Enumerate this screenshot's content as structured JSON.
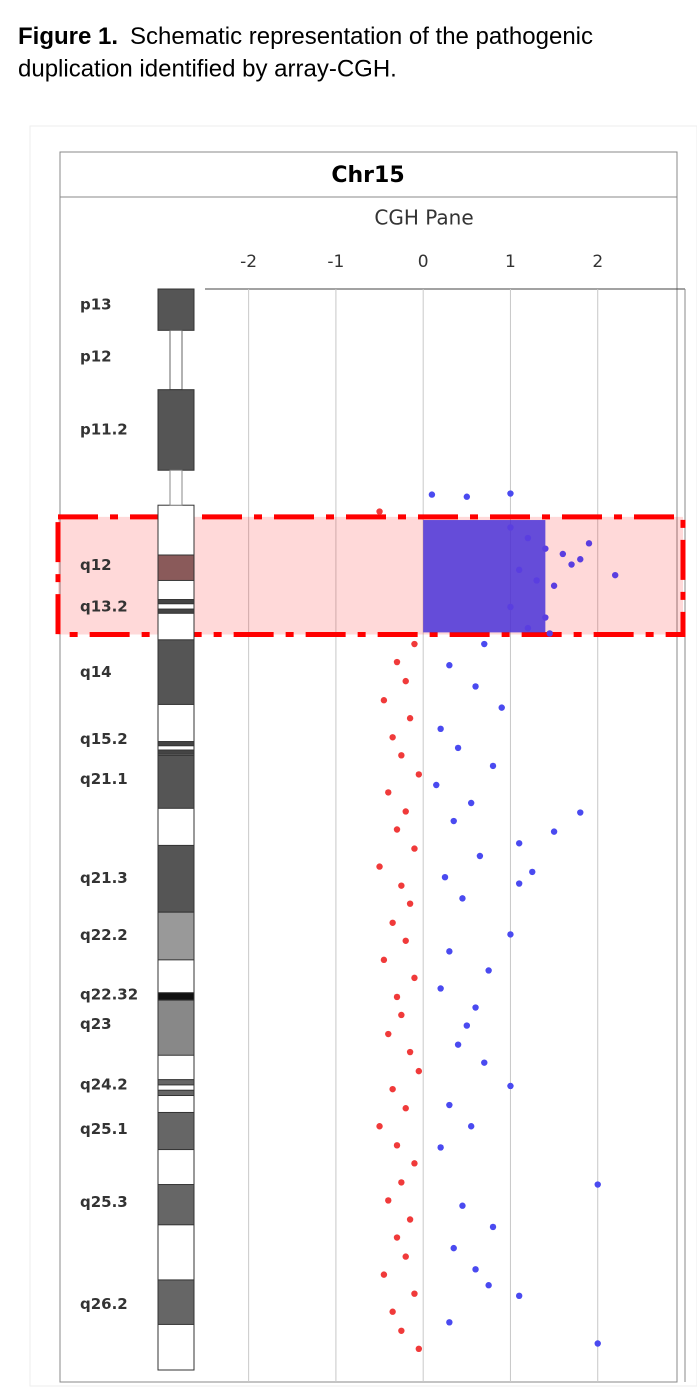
{
  "caption": {
    "label": "Figure 1.",
    "lines": [
      "Schematic representation of the pathogenic",
      "duplication identified by array-CGH."
    ]
  },
  "chart_data": {
    "type": "scatter",
    "title": "Chr15",
    "subtitle": "CGH Pane",
    "xlim": [
      -2.5,
      3
    ],
    "xticks": [
      -2,
      -1,
      0,
      1,
      2
    ],
    "ylim": [
      0,
      102
    ],
    "grid": true,
    "highlight": {
      "start": 21.5,
      "end": 32.6,
      "color": "#ff0000"
    },
    "duplication": {
      "start": 21.8,
      "end": 32.4,
      "mean": 1.4,
      "color": "#4a32d8"
    },
    "series": [
      {
        "color": "#f03a3a",
        "x": [
          -0.5,
          -0.1,
          -0.3,
          -0.2,
          -0.45,
          -0.15,
          -0.35,
          -0.25,
          -0.05,
          -0.4,
          -0.2,
          -0.3,
          -0.1,
          -0.5,
          -0.25,
          -0.15,
          -0.35,
          -0.2,
          -0.45,
          -0.1,
          -0.3,
          -0.25,
          -0.4,
          -0.15,
          -0.05,
          -0.35,
          -0.2,
          -0.5,
          -0.3,
          -0.1,
          -0.25,
          -0.4,
          -0.15,
          -0.3,
          -0.2,
          -0.45,
          -0.1,
          -0.35,
          -0.25,
          -0.05
        ],
        "values": [
          21.0,
          33.5,
          35.2,
          37.0,
          38.8,
          40.5,
          42.3,
          44.0,
          45.8,
          47.5,
          49.3,
          51.0,
          52.8,
          54.5,
          56.3,
          58.0,
          59.8,
          61.5,
          63.3,
          65.0,
          66.8,
          68.5,
          70.3,
          72.0,
          73.8,
          75.5,
          77.3,
          79.0,
          80.8,
          82.5,
          84.3,
          86.0,
          87.8,
          89.5,
          91.3,
          93.0,
          94.8,
          96.5,
          98.3,
          100.0
        ]
      },
      {
        "color": "#4a4af0",
        "x": [
          0.1,
          0.5,
          1.0,
          0.7,
          0.3,
          0.6,
          0.9,
          0.2,
          0.4,
          0.8,
          0.15,
          0.55,
          0.35,
          1.8,
          1.5,
          1.1,
          0.65,
          0.25,
          1.25,
          1.1,
          0.45,
          1.0,
          0.3,
          0.75,
          0.2,
          0.6,
          0.5,
          0.4,
          1.0,
          0.7,
          0.3,
          0.55,
          0.2,
          2.0,
          0.45,
          0.8,
          0.35,
          0.6,
          0.75,
          1.1,
          0.3,
          2.0
        ],
        "values": [
          19.4,
          19.6,
          19.3,
          33.5,
          35.5,
          37.5,
          39.5,
          41.5,
          43.3,
          45.0,
          46.8,
          48.5,
          50.2,
          49.4,
          51.2,
          52.3,
          53.5,
          55.5,
          55.0,
          56.1,
          57.5,
          60.9,
          62.5,
          64.3,
          66.0,
          67.8,
          69.5,
          71.3,
          75.2,
          73.0,
          77.0,
          79.0,
          81.0,
          84.5,
          86.5,
          88.5,
          90.5,
          92.5,
          94.0,
          95.0,
          97.5,
          99.5
        ]
      },
      {
        "color": "#5a3ee0",
        "x": [
          1.0,
          1.2,
          1.4,
          1.6,
          1.8,
          1.1,
          1.3,
          1.5,
          1.7,
          1.9,
          1.0,
          1.4,
          1.2,
          2.2,
          1.45
        ],
        "values": [
          22.5,
          23.5,
          24.5,
          25.0,
          25.5,
          26.5,
          27.5,
          28.0,
          26.0,
          24.0,
          30.0,
          31.0,
          32.0,
          27.0,
          32.5
        ]
      }
    ],
    "ideogram": {
      "q_start": 20.4,
      "q_end": 102,
      "segments": [
        {
          "start": 0,
          "end": 3.9,
          "color": "#555555"
        },
        {
          "start": 3.9,
          "end": 9.5,
          "color": "#666666",
          "kind": "stalk"
        },
        {
          "start": 9.5,
          "end": 17.1,
          "color": "#555555"
        },
        {
          "start": 17.1,
          "end": 20.4,
          "color": "#888888",
          "kind": "stalk"
        },
        {
          "start": 25.1,
          "end": 27.5,
          "color": "#8a5a5a"
        },
        {
          "start": 29.3,
          "end": 29.7,
          "color": "#444444"
        },
        {
          "start": 30.2,
          "end": 30.6,
          "color": "#444444"
        },
        {
          "start": 33.1,
          "end": 39.2,
          "color": "#555555"
        },
        {
          "start": 42.7,
          "end": 43.1,
          "color": "#444444"
        },
        {
          "start": 43.5,
          "end": 43.9,
          "color": "#444444"
        },
        {
          "start": 44.0,
          "end": 49.0,
          "color": "#555555"
        },
        {
          "start": 52.5,
          "end": 58.8,
          "color": "#555555"
        },
        {
          "start": 58.8,
          "end": 63.3,
          "color": "#999999"
        },
        {
          "start": 66.4,
          "end": 67.1,
          "color": "#111111"
        },
        {
          "start": 67.1,
          "end": 72.3,
          "color": "#888888"
        },
        {
          "start": 74.6,
          "end": 75.1,
          "color": "#666666"
        },
        {
          "start": 75.6,
          "end": 76.1,
          "color": "#666666"
        },
        {
          "start": 77.7,
          "end": 81.2,
          "color": "#666666"
        },
        {
          "start": 84.5,
          "end": 88.3,
          "color": "#666666"
        },
        {
          "start": 93.5,
          "end": 97.7,
          "color": "#666666"
        }
      ]
    },
    "bands": [
      {
        "label": "p13",
        "position": 1.5
      },
      {
        "label": "p12",
        "position": 6.4
      },
      {
        "label": "p11.2",
        "position": 13.3
      },
      {
        "label": "q12",
        "position": 26.1
      },
      {
        "label": "q13.2",
        "position": 30.0
      },
      {
        "label": "q14",
        "position": 36.2
      },
      {
        "label": "q15.2",
        "position": 42.5
      },
      {
        "label": "q21.1",
        "position": 46.3
      },
      {
        "label": "q21.3",
        "position": 55.6
      },
      {
        "label": "q22.2",
        "position": 61.0
      },
      {
        "label": "q22.32",
        "position": 66.6
      },
      {
        "label": "q23",
        "position": 69.4
      },
      {
        "label": "q24.2",
        "position": 75.1
      },
      {
        "label": "q25.1",
        "position": 79.3
      },
      {
        "label": "q25.3",
        "position": 86.2
      },
      {
        "label": "q26.2",
        "position": 95.8
      }
    ]
  }
}
